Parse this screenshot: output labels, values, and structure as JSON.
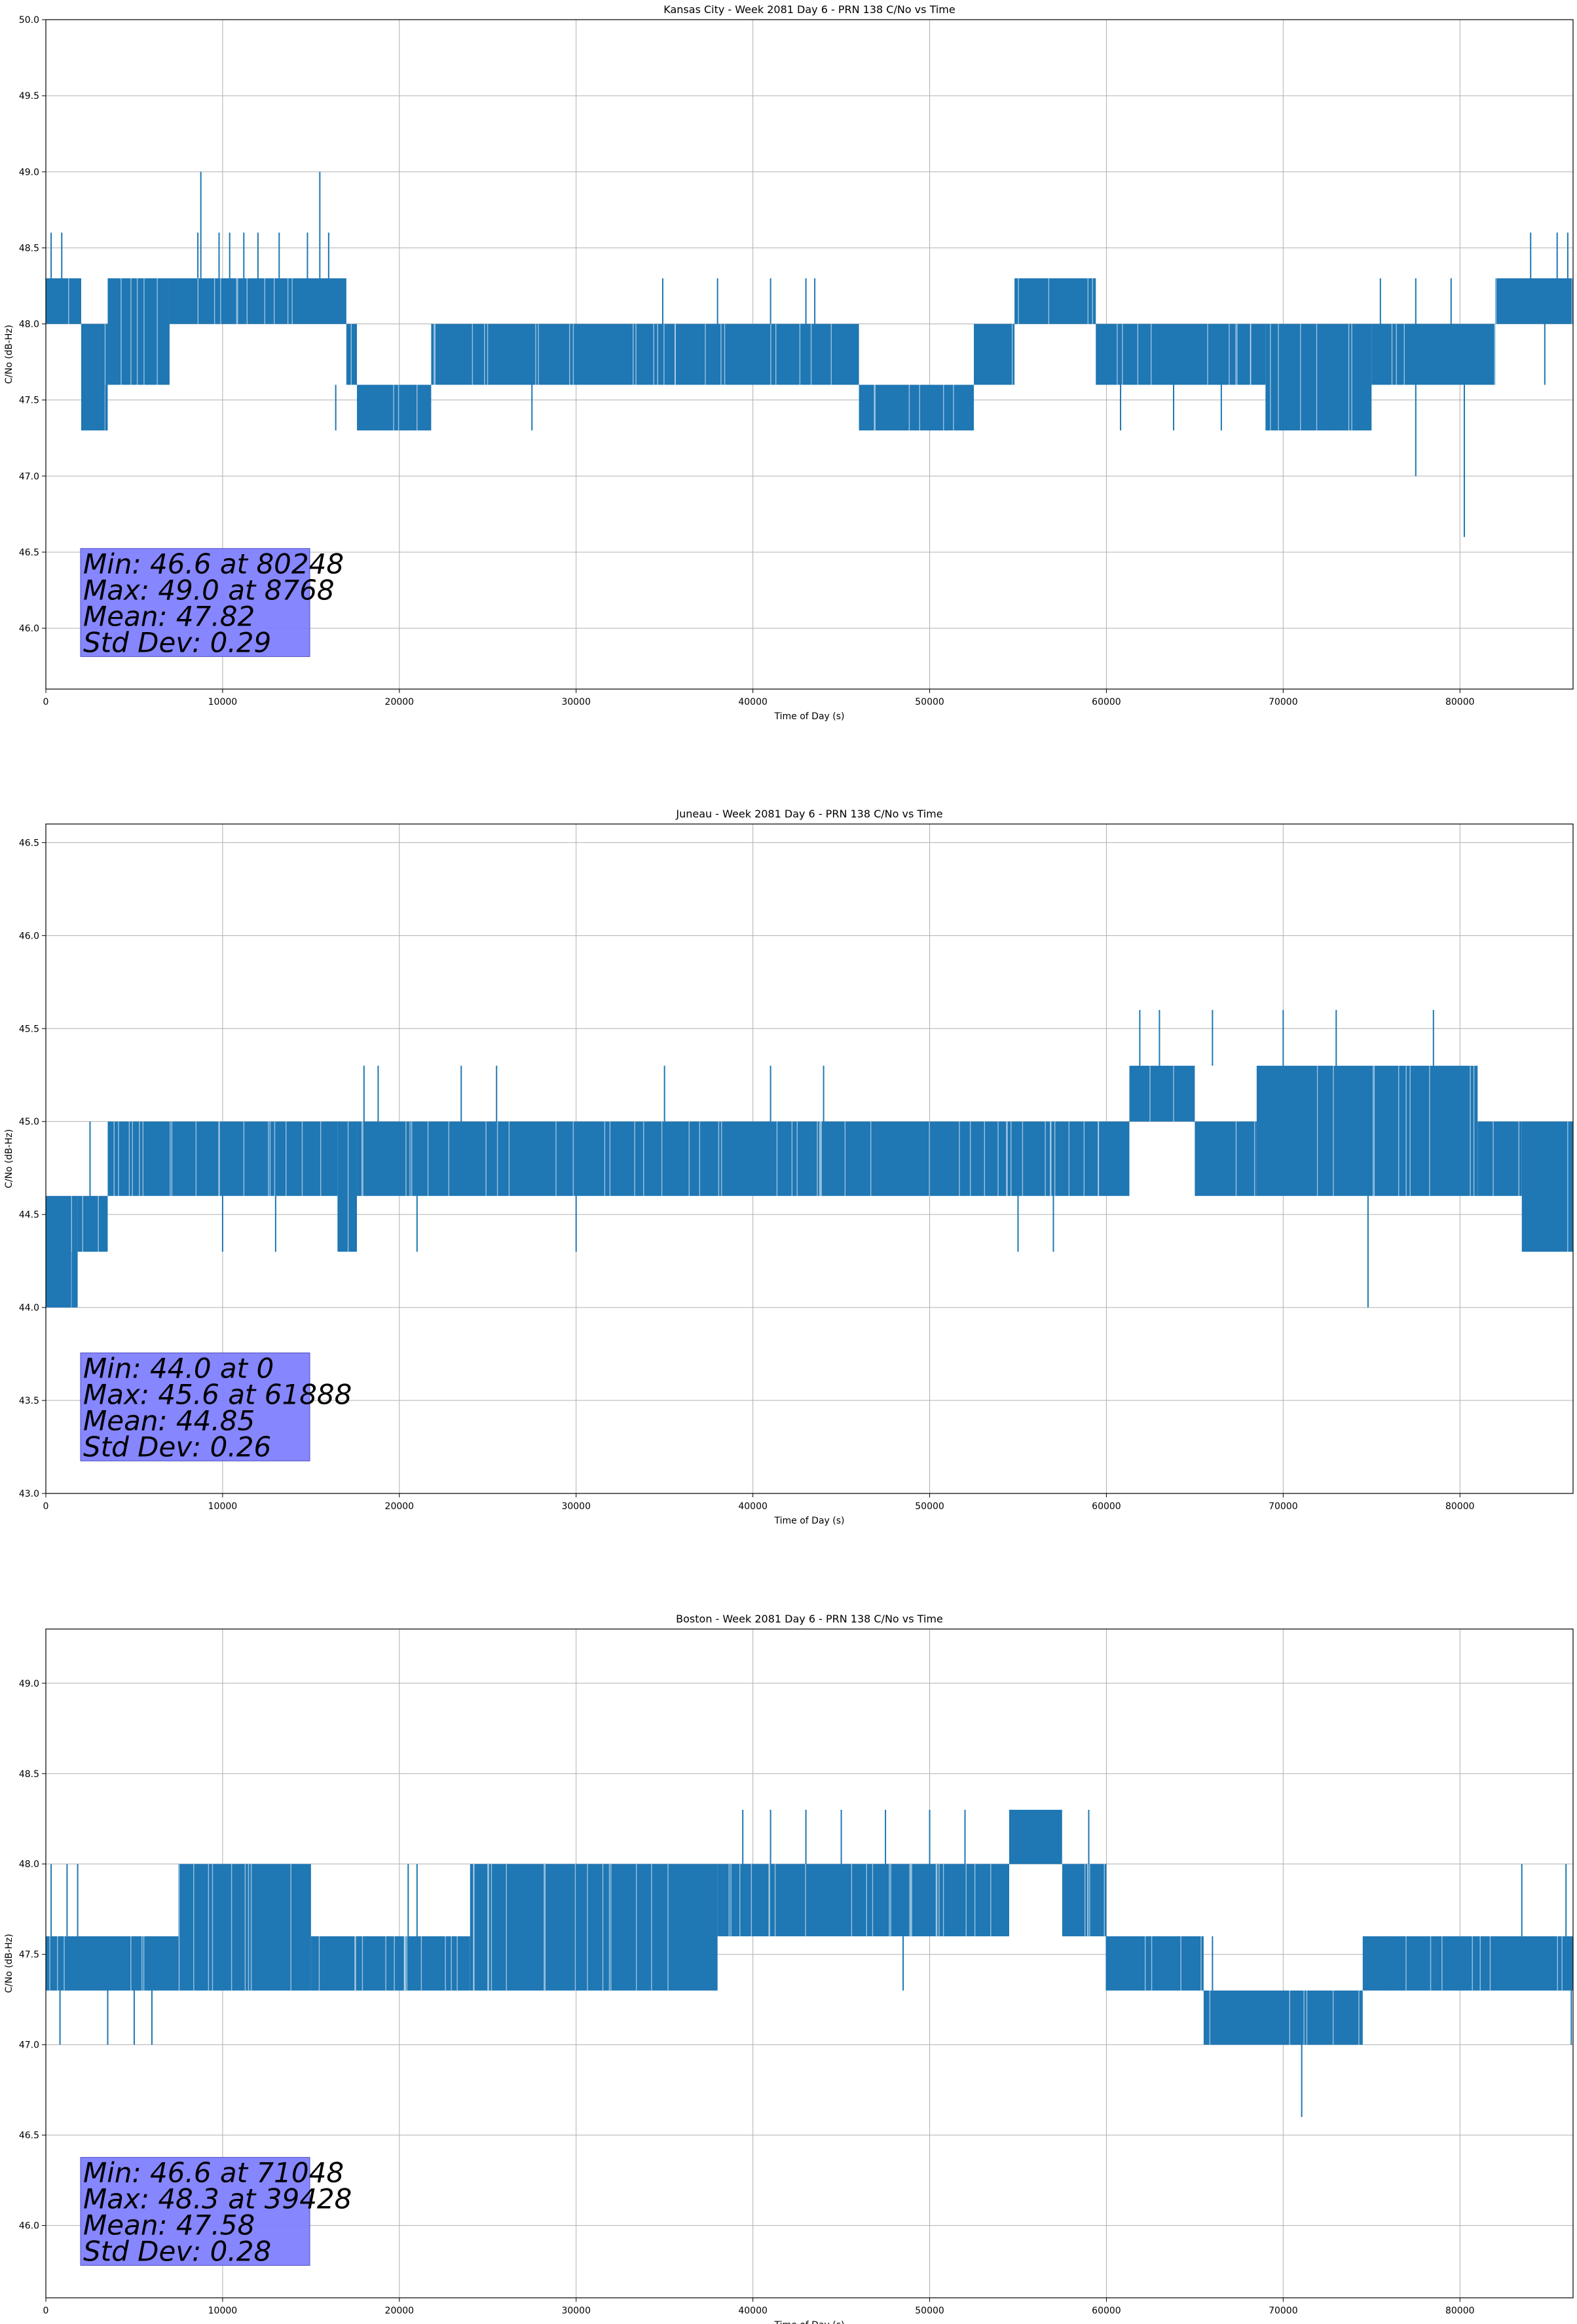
{
  "chart_data": [
    {
      "type": "line",
      "title": "Kansas City - Week 2081 Day 6 - PRN 138 C/No vs Time",
      "xlabel": "Time of Day (s)",
      "ylabel": "C/No (dB-Hz)",
      "xlim": [
        0,
        86400
      ],
      "ylim": [
        45.6,
        50.0
      ],
      "xticks": [
        0,
        10000,
        20000,
        30000,
        40000,
        50000,
        60000,
        70000,
        80000
      ],
      "yticks": [
        46.0,
        46.5,
        47.0,
        47.5,
        48.0,
        48.5,
        49.0,
        49.5,
        50.0
      ],
      "grid": true,
      "color": "#1f77b4",
      "stats_box_color": "#8080ff",
      "stats_lines": [
        "Min: 46.6 at 80248",
        "Max: 49.0 at 8768",
        "Mean: 47.82",
        "Std Dev: 0.29"
      ],
      "band_segments": [
        {
          "x": [
            0,
            2000
          ],
          "y": [
            48.0,
            48.3
          ]
        },
        {
          "x": [
            2000,
            3500
          ],
          "y": [
            47.3,
            48.0
          ]
        },
        {
          "x": [
            3500,
            7000
          ],
          "y": [
            47.6,
            48.3
          ]
        },
        {
          "x": [
            7000,
            17000
          ],
          "y": [
            48.0,
            48.3
          ]
        },
        {
          "x": [
            17000,
            17600
          ],
          "y": [
            47.6,
            48.0
          ]
        },
        {
          "x": [
            17600,
            21800
          ],
          "y": [
            47.3,
            47.6
          ]
        },
        {
          "x": [
            21800,
            46000
          ],
          "y": [
            47.6,
            48.0
          ]
        },
        {
          "x": [
            46000,
            52500
          ],
          "y": [
            47.3,
            47.6
          ]
        },
        {
          "x": [
            52500,
            54800
          ],
          "y": [
            47.6,
            48.0
          ]
        },
        {
          "x": [
            54800,
            59400
          ],
          "y": [
            48.0,
            48.3
          ]
        },
        {
          "x": [
            59400,
            69000
          ],
          "y": [
            47.6,
            48.0
          ]
        },
        {
          "x": [
            69000,
            75000
          ],
          "y": [
            47.3,
            48.0
          ]
        },
        {
          "x": [
            75000,
            82000
          ],
          "y": [
            47.6,
            48.0
          ]
        },
        {
          "x": [
            82000,
            86400
          ],
          "y": [
            48.0,
            48.3
          ]
        }
      ],
      "spikes": [
        {
          "x": 300,
          "y0": 48.3,
          "y1": 48.6
        },
        {
          "x": 900,
          "y0": 48.3,
          "y1": 48.6
        },
        {
          "x": 2100,
          "y0": 47.6,
          "y1": 47.3
        },
        {
          "x": 3400,
          "y0": 47.6,
          "y1": 47.3
        },
        {
          "x": 8600,
          "y0": 48.3,
          "y1": 48.6
        },
        {
          "x": 8768,
          "y0": 48.3,
          "y1": 49.0
        },
        {
          "x": 9800,
          "y0": 48.3,
          "y1": 48.6
        },
        {
          "x": 10400,
          "y0": 48.3,
          "y1": 48.6
        },
        {
          "x": 11200,
          "y0": 48.3,
          "y1": 48.6
        },
        {
          "x": 12000,
          "y0": 48.3,
          "y1": 48.6
        },
        {
          "x": 13200,
          "y0": 48.3,
          "y1": 48.6
        },
        {
          "x": 14800,
          "y0": 48.3,
          "y1": 48.6
        },
        {
          "x": 15500,
          "y0": 48.3,
          "y1": 49.0
        },
        {
          "x": 16000,
          "y0": 48.3,
          "y1": 48.6
        },
        {
          "x": 16400,
          "y0": 47.6,
          "y1": 47.3
        },
        {
          "x": 27500,
          "y0": 47.6,
          "y1": 47.3
        },
        {
          "x": 34900,
          "y0": 48.0,
          "y1": 48.3
        },
        {
          "x": 38000,
          "y0": 48.0,
          "y1": 48.3
        },
        {
          "x": 41000,
          "y0": 48.0,
          "y1": 48.3
        },
        {
          "x": 43000,
          "y0": 48.0,
          "y1": 48.3
        },
        {
          "x": 43500,
          "y0": 48.0,
          "y1": 48.3
        },
        {
          "x": 60800,
          "y0": 47.6,
          "y1": 47.3
        },
        {
          "x": 63800,
          "y0": 47.6,
          "y1": 47.3
        },
        {
          "x": 66500,
          "y0": 47.6,
          "y1": 47.3
        },
        {
          "x": 72800,
          "y0": 47.6,
          "y1": 47.3
        },
        {
          "x": 75500,
          "y0": 48.0,
          "y1": 48.3
        },
        {
          "x": 77500,
          "y0": 48.0,
          "y1": 48.3
        },
        {
          "x": 77500,
          "y0": 47.6,
          "y1": 47.0
        },
        {
          "x": 80248,
          "y0": 47.6,
          "y1": 46.6
        },
        {
          "x": 79500,
          "y0": 48.0,
          "y1": 48.3
        },
        {
          "x": 84000,
          "y0": 48.3,
          "y1": 48.6
        },
        {
          "x": 84800,
          "y0": 48.0,
          "y1": 47.6
        },
        {
          "x": 85500,
          "y0": 48.3,
          "y1": 48.6
        },
        {
          "x": 86100,
          "y0": 48.3,
          "y1": 48.6
        }
      ]
    },
    {
      "type": "line",
      "title": "Juneau - Week 2081 Day 6 - PRN 138 C/No vs Time",
      "xlabel": "Time of Day (s)",
      "ylabel": "C/No (dB-Hz)",
      "xlim": [
        0,
        86400
      ],
      "ylim": [
        43.0,
        46.6
      ],
      "xticks": [
        0,
        10000,
        20000,
        30000,
        40000,
        50000,
        60000,
        70000,
        80000
      ],
      "yticks": [
        43.0,
        43.5,
        44.0,
        44.5,
        45.0,
        45.5,
        46.0,
        46.5
      ],
      "grid": true,
      "color": "#1f77b4",
      "stats_box_color": "#8080ff",
      "stats_lines": [
        "Min: 44.0 at 0",
        "Max: 45.6 at 61888",
        "Mean: 44.85",
        "Std Dev: 0.26"
      ],
      "band_segments": [
        {
          "x": [
            0,
            1800
          ],
          "y": [
            44.0,
            44.6
          ]
        },
        {
          "x": [
            1800,
            3500
          ],
          "y": [
            44.3,
            44.6
          ]
        },
        {
          "x": [
            3500,
            16500
          ],
          "y": [
            44.6,
            45.0
          ]
        },
        {
          "x": [
            16500,
            17600
          ],
          "y": [
            44.3,
            45.0
          ]
        },
        {
          "x": [
            17600,
            61300
          ],
          "y": [
            44.6,
            45.0
          ]
        },
        {
          "x": [
            61300,
            65000
          ],
          "y": [
            45.0,
            45.3
          ]
        },
        {
          "x": [
            65000,
            68500
          ],
          "y": [
            44.6,
            45.0
          ]
        },
        {
          "x": [
            68500,
            81000
          ],
          "y": [
            44.6,
            45.3
          ]
        },
        {
          "x": [
            81000,
            83500
          ],
          "y": [
            44.6,
            45.0
          ]
        },
        {
          "x": [
            83500,
            86400
          ],
          "y": [
            44.3,
            45.0
          ]
        }
      ],
      "spikes": [
        {
          "x": 0,
          "y0": 44.3,
          "y1": 44.0
        },
        {
          "x": 1500,
          "y0": 44.3,
          "y1": 44.0
        },
        {
          "x": 2500,
          "y0": 44.6,
          "y1": 45.0
        },
        {
          "x": 10000,
          "y0": 44.6,
          "y1": 44.3
        },
        {
          "x": 13000,
          "y0": 44.6,
          "y1": 44.3
        },
        {
          "x": 18000,
          "y0": 45.0,
          "y1": 45.3
        },
        {
          "x": 18800,
          "y0": 45.0,
          "y1": 45.3
        },
        {
          "x": 21000,
          "y0": 44.6,
          "y1": 44.3
        },
        {
          "x": 23500,
          "y0": 45.0,
          "y1": 45.3
        },
        {
          "x": 25500,
          "y0": 45.0,
          "y1": 45.3
        },
        {
          "x": 30000,
          "y0": 44.6,
          "y1": 44.3
        },
        {
          "x": 35000,
          "y0": 45.0,
          "y1": 45.3
        },
        {
          "x": 41000,
          "y0": 45.0,
          "y1": 45.3
        },
        {
          "x": 44000,
          "y0": 45.0,
          "y1": 45.3
        },
        {
          "x": 55000,
          "y0": 44.6,
          "y1": 44.3
        },
        {
          "x": 57000,
          "y0": 44.6,
          "y1": 44.3
        },
        {
          "x": 61888,
          "y0": 45.3,
          "y1": 45.6
        },
        {
          "x": 63000,
          "y0": 45.3,
          "y1": 45.6
        },
        {
          "x": 66000,
          "y0": 45.3,
          "y1": 45.6
        },
        {
          "x": 70000,
          "y0": 45.3,
          "y1": 45.6
        },
        {
          "x": 73000,
          "y0": 45.3,
          "y1": 45.6
        },
        {
          "x": 74800,
          "y0": 44.6,
          "y1": 44.0
        },
        {
          "x": 78500,
          "y0": 45.3,
          "y1": 45.6
        },
        {
          "x": 79500,
          "y0": 45.0,
          "y1": 45.3
        }
      ]
    },
    {
      "type": "line",
      "title": "Boston - Week 2081 Day 6 - PRN 138 C/No vs Time",
      "xlabel": "Time of Day (s)",
      "ylabel": "C/No (dB-Hz)",
      "xlim": [
        0,
        86400
      ],
      "ylim": [
        45.6,
        49.3
      ],
      "xticks": [
        0,
        10000,
        20000,
        30000,
        40000,
        50000,
        60000,
        70000,
        80000
      ],
      "yticks": [
        46.0,
        46.5,
        47.0,
        47.5,
        48.0,
        48.5,
        49.0
      ],
      "grid": true,
      "color": "#1f77b4",
      "stats_box_color": "#8080ff",
      "stats_lines": [
        "Min: 46.6 at 71048",
        "Max: 48.3 at 39428",
        "Mean: 47.58",
        "Std Dev: 0.28"
      ],
      "band_segments": [
        {
          "x": [
            0,
            7500
          ],
          "y": [
            47.3,
            47.6
          ]
        },
        {
          "x": [
            7500,
            15000
          ],
          "y": [
            47.3,
            48.0
          ]
        },
        {
          "x": [
            15000,
            24000
          ],
          "y": [
            47.3,
            47.6
          ]
        },
        {
          "x": [
            24000,
            38000
          ],
          "y": [
            47.3,
            48.0
          ]
        },
        {
          "x": [
            38000,
            54500
          ],
          "y": [
            47.6,
            48.0
          ]
        },
        {
          "x": [
            54500,
            57500
          ],
          "y": [
            48.0,
            48.3
          ]
        },
        {
          "x": [
            57500,
            60000
          ],
          "y": [
            47.6,
            48.0
          ]
        },
        {
          "x": [
            60000,
            65500
          ],
          "y": [
            47.3,
            47.6
          ]
        },
        {
          "x": [
            65500,
            74500
          ],
          "y": [
            47.0,
            47.3
          ]
        },
        {
          "x": [
            74500,
            86400
          ],
          "y": [
            47.3,
            47.6
          ]
        }
      ],
      "spikes": [
        {
          "x": 300,
          "y0": 47.6,
          "y1": 48.0
        },
        {
          "x": 1200,
          "y0": 47.6,
          "y1": 48.0
        },
        {
          "x": 1800,
          "y0": 47.6,
          "y1": 48.0
        },
        {
          "x": 800,
          "y0": 47.3,
          "y1": 47.0
        },
        {
          "x": 3500,
          "y0": 47.3,
          "y1": 47.0
        },
        {
          "x": 5000,
          "y0": 47.3,
          "y1": 47.0
        },
        {
          "x": 6000,
          "y0": 47.3,
          "y1": 47.0
        },
        {
          "x": 20500,
          "y0": 47.6,
          "y1": 48.0
        },
        {
          "x": 21000,
          "y0": 47.6,
          "y1": 48.0
        },
        {
          "x": 39428,
          "y0": 48.0,
          "y1": 48.3
        },
        {
          "x": 41000,
          "y0": 48.0,
          "y1": 48.3
        },
        {
          "x": 43000,
          "y0": 48.0,
          "y1": 48.3
        },
        {
          "x": 45000,
          "y0": 48.0,
          "y1": 48.3
        },
        {
          "x": 47500,
          "y0": 48.0,
          "y1": 48.3
        },
        {
          "x": 48500,
          "y0": 47.6,
          "y1": 47.3
        },
        {
          "x": 50000,
          "y0": 48.0,
          "y1": 48.3
        },
        {
          "x": 52000,
          "y0": 48.0,
          "y1": 48.3
        },
        {
          "x": 59000,
          "y0": 48.0,
          "y1": 48.3
        },
        {
          "x": 60000,
          "y0": 47.6,
          "y1": 47.3
        },
        {
          "x": 66000,
          "y0": 47.3,
          "y1": 47.6
        },
        {
          "x": 71048,
          "y0": 47.0,
          "y1": 46.6
        },
        {
          "x": 76000,
          "y0": 47.3,
          "y1": 47.6
        },
        {
          "x": 83500,
          "y0": 47.6,
          "y1": 48.0
        },
        {
          "x": 86000,
          "y0": 47.6,
          "y1": 48.0
        },
        {
          "x": 86300,
          "y0": 47.3,
          "y1": 47.0
        }
      ]
    }
  ]
}
